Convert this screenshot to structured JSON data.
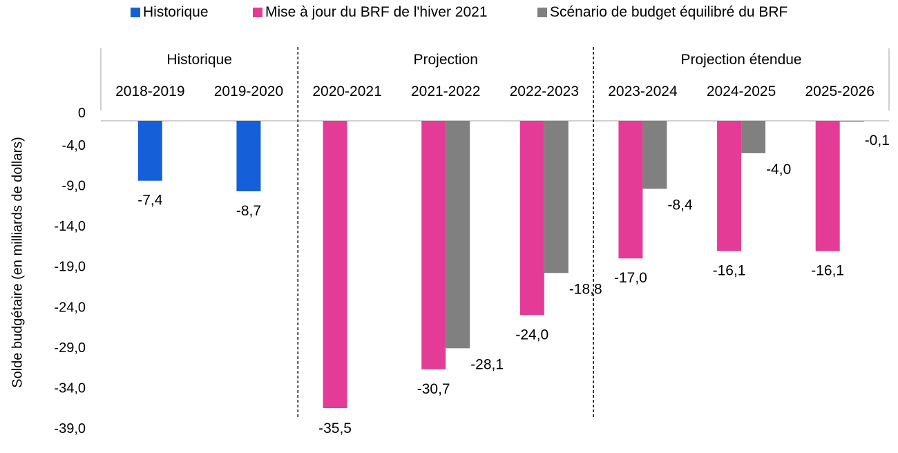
{
  "legend": [
    {
      "label": "Historique",
      "color": "#1560d8"
    },
    {
      "label": "Mise à jour du BRF de l'hiver 2021",
      "color": "#e43c96"
    },
    {
      "label": "Scénario de budget équilibré du BRF",
      "color": "#808080"
    }
  ],
  "chart_data": {
    "type": "bar",
    "title": "",
    "xlabel": "",
    "ylabel": "Solde budgétaire (en milliards de dollars)",
    "ylim": [
      -39.0,
      0
    ],
    "yticks": [
      "0",
      "-4,0",
      "-9,0",
      "-14,0",
      "-19,0",
      "-24,0",
      "-29,0",
      "-34,0",
      "-39,0"
    ],
    "ytick_values": [
      0,
      -4,
      -9,
      -14,
      -19,
      -24,
      -29,
      -34,
      -39
    ],
    "groups": [
      {
        "label": "Historique",
        "categories": [
          "2018-2019",
          "2019-2020"
        ]
      },
      {
        "label": "Projection",
        "categories": [
          "2020-2021",
          "2021-2022",
          "2022-2023"
        ]
      },
      {
        "label": "Projection étendue",
        "categories": [
          "2023-2024",
          "2024-2025",
          "2025-2026"
        ]
      }
    ],
    "categories": [
      "2018-2019",
      "2019-2020",
      "2020-2021",
      "2021-2022",
      "2022-2023",
      "2023-2024",
      "2024-2025",
      "2025-2026"
    ],
    "series": [
      {
        "name": "Historique",
        "color": "#1560d8",
        "values": [
          -7.4,
          -8.7,
          null,
          null,
          null,
          null,
          null,
          null
        ],
        "labels": [
          "-7,4",
          "-8,7",
          null,
          null,
          null,
          null,
          null,
          null
        ]
      },
      {
        "name": "Mise à jour du BRF de l'hiver 2021",
        "color": "#e43c96",
        "values": [
          null,
          null,
          -35.5,
          -30.7,
          -24.0,
          -17.0,
          -16.1,
          -16.1
        ],
        "labels": [
          null,
          null,
          "-35,5",
          "-30,7",
          "-24,0",
          "-17,0",
          "-16,1",
          "-16,1"
        ]
      },
      {
        "name": "Scénario de budget équilibré du BRF",
        "color": "#808080",
        "values": [
          null,
          null,
          null,
          -28.1,
          -18.8,
          -8.4,
          -4.0,
          -0.1
        ],
        "labels": [
          null,
          null,
          null,
          "-28,1",
          "-18,8",
          "-8,4",
          "-4,0",
          "-0,1"
        ]
      }
    ],
    "grid": false,
    "legend_position": "top"
  }
}
